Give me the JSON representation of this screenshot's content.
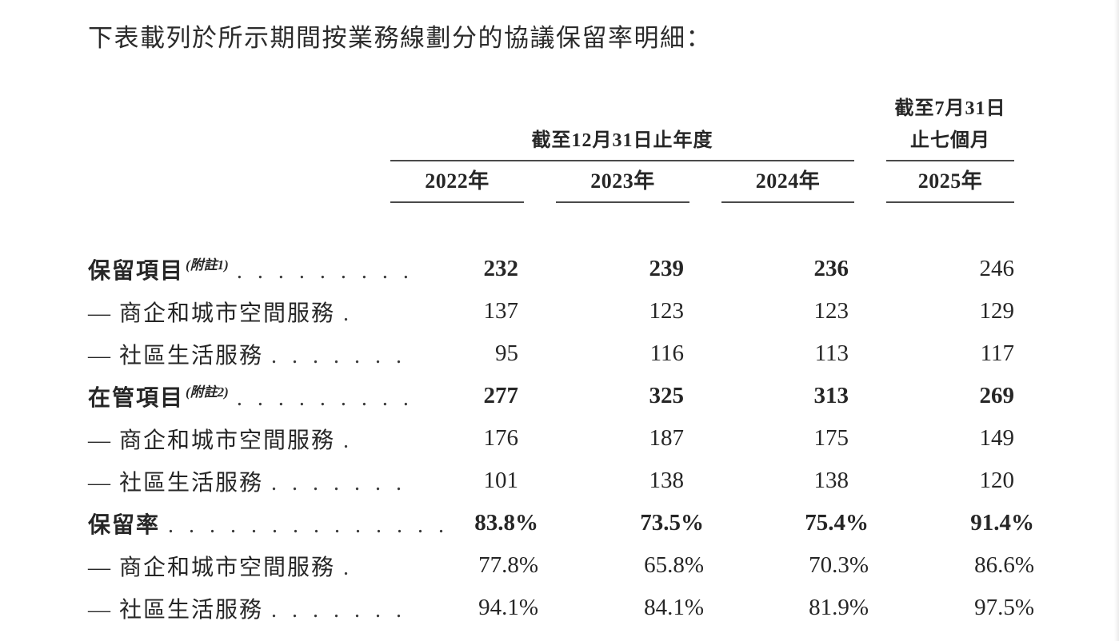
{
  "page": {
    "title": "下表載列於所示期間按業務線劃分的協議保留率明細："
  },
  "table": {
    "group_headers": {
      "year_ended": "截至12月31日止年度",
      "seven_months_line1": "截至7月31日",
      "seven_months_line2": "止七個月"
    },
    "column_headers": [
      "2022年",
      "2023年",
      "2024年",
      "2025年"
    ],
    "rows": [
      {
        "label": "保留項目",
        "note": "(附註1)",
        "dots": ". . . . . . . . .",
        "label_bold": true,
        "values": [
          "232",
          "239",
          "236",
          "246"
        ],
        "values_bold": [
          true,
          true,
          true,
          false
        ]
      },
      {
        "label": "— 商企和城市空間服務",
        "note": "",
        "dots": ".",
        "label_bold": false,
        "values": [
          "137",
          "123",
          "123",
          "129"
        ],
        "values_bold": [
          false,
          false,
          false,
          false
        ]
      },
      {
        "label": "— 社區生活服務",
        "note": "",
        "dots": ". . . . . . .",
        "label_bold": false,
        "values": [
          "95",
          "116",
          "113",
          "117"
        ],
        "values_bold": [
          false,
          false,
          false,
          false
        ]
      },
      {
        "label": "在管項目",
        "note": "(附註2)",
        "dots": ". . . . . . . . .",
        "label_bold": true,
        "values": [
          "277",
          "325",
          "313",
          "269"
        ],
        "values_bold": [
          true,
          true,
          true,
          true
        ]
      },
      {
        "label": "— 商企和城市空間服務",
        "note": "",
        "dots": ".",
        "label_bold": false,
        "values": [
          "176",
          "187",
          "175",
          "149"
        ],
        "values_bold": [
          false,
          false,
          false,
          false
        ]
      },
      {
        "label": "— 社區生活服務",
        "note": "",
        "dots": ". . . . . . .",
        "label_bold": false,
        "values": [
          "101",
          "138",
          "138",
          "120"
        ],
        "values_bold": [
          false,
          false,
          false,
          false
        ]
      },
      {
        "label": "保留率",
        "note": "",
        "dots": ". . . . . . . . . . . . . .",
        "label_bold": true,
        "values": [
          "83.8%",
          "73.5%",
          "75.4%",
          "91.4%"
        ],
        "values_bold": [
          true,
          true,
          true,
          true
        ]
      },
      {
        "label": "— 商企和城市空間服務",
        "note": "",
        "dots": ".",
        "label_bold": false,
        "values": [
          "77.8%",
          "65.8%",
          "70.3%",
          "86.6%"
        ],
        "values_bold": [
          false,
          false,
          false,
          false
        ]
      },
      {
        "label": "— 社區生活服務",
        "note": "",
        "dots": ". . . . . . .",
        "label_bold": false,
        "values": [
          "94.1%",
          "84.1%",
          "81.9%",
          "97.5%"
        ],
        "values_bold": [
          false,
          false,
          false,
          false
        ]
      }
    ]
  },
  "colors": {
    "text": "#262626",
    "rule": "#4a4a4a",
    "background": "#ffffff"
  }
}
